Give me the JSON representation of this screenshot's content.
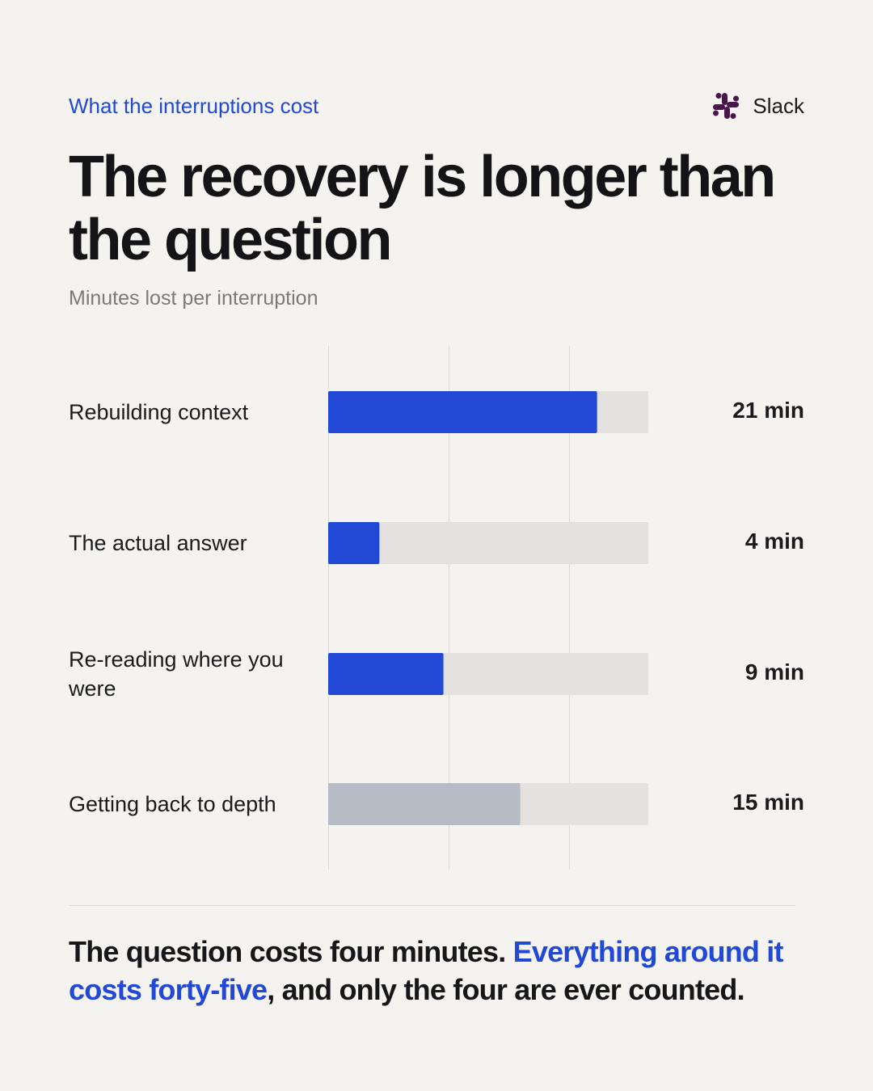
{
  "header": {
    "eyebrow": "What the interruptions cost",
    "brand": "Slack",
    "brand_icon": "slack-logo"
  },
  "headline": "The recovery is longer than the question",
  "subtitle": "Minutes lost per interruption",
  "chart_data": {
    "type": "bar",
    "orientation": "horizontal",
    "categories": [
      "Rebuilding context",
      "The actual answer",
      "Re-reading where you were",
      "Getting back to depth"
    ],
    "values": [
      21,
      4,
      9,
      15
    ],
    "value_labels": [
      "21 min",
      "4 min",
      "9 min",
      "15 min"
    ],
    "unit": "min",
    "xlim": [
      0,
      25
    ],
    "gridlines": [
      0,
      9.4,
      18.8
    ],
    "grid": true,
    "bar_colors": [
      "#2149d6",
      "#2149d6",
      "#2149d6",
      "#b7bbc6"
    ],
    "track_color": "#e3e2de",
    "grid_color": "#dcdbd7",
    "title": "",
    "xlabel": "",
    "ylabel": ""
  },
  "takeaway": {
    "lead": "The question costs four minutes. ",
    "highlight": "Everything around it costs forty-five",
    "tail": ", and only the four are ever counted."
  },
  "colors": {
    "accent": "#2149d6",
    "muted_bar": "#b7bbc6",
    "background": "#f4f3f0",
    "text": "#17171a"
  }
}
